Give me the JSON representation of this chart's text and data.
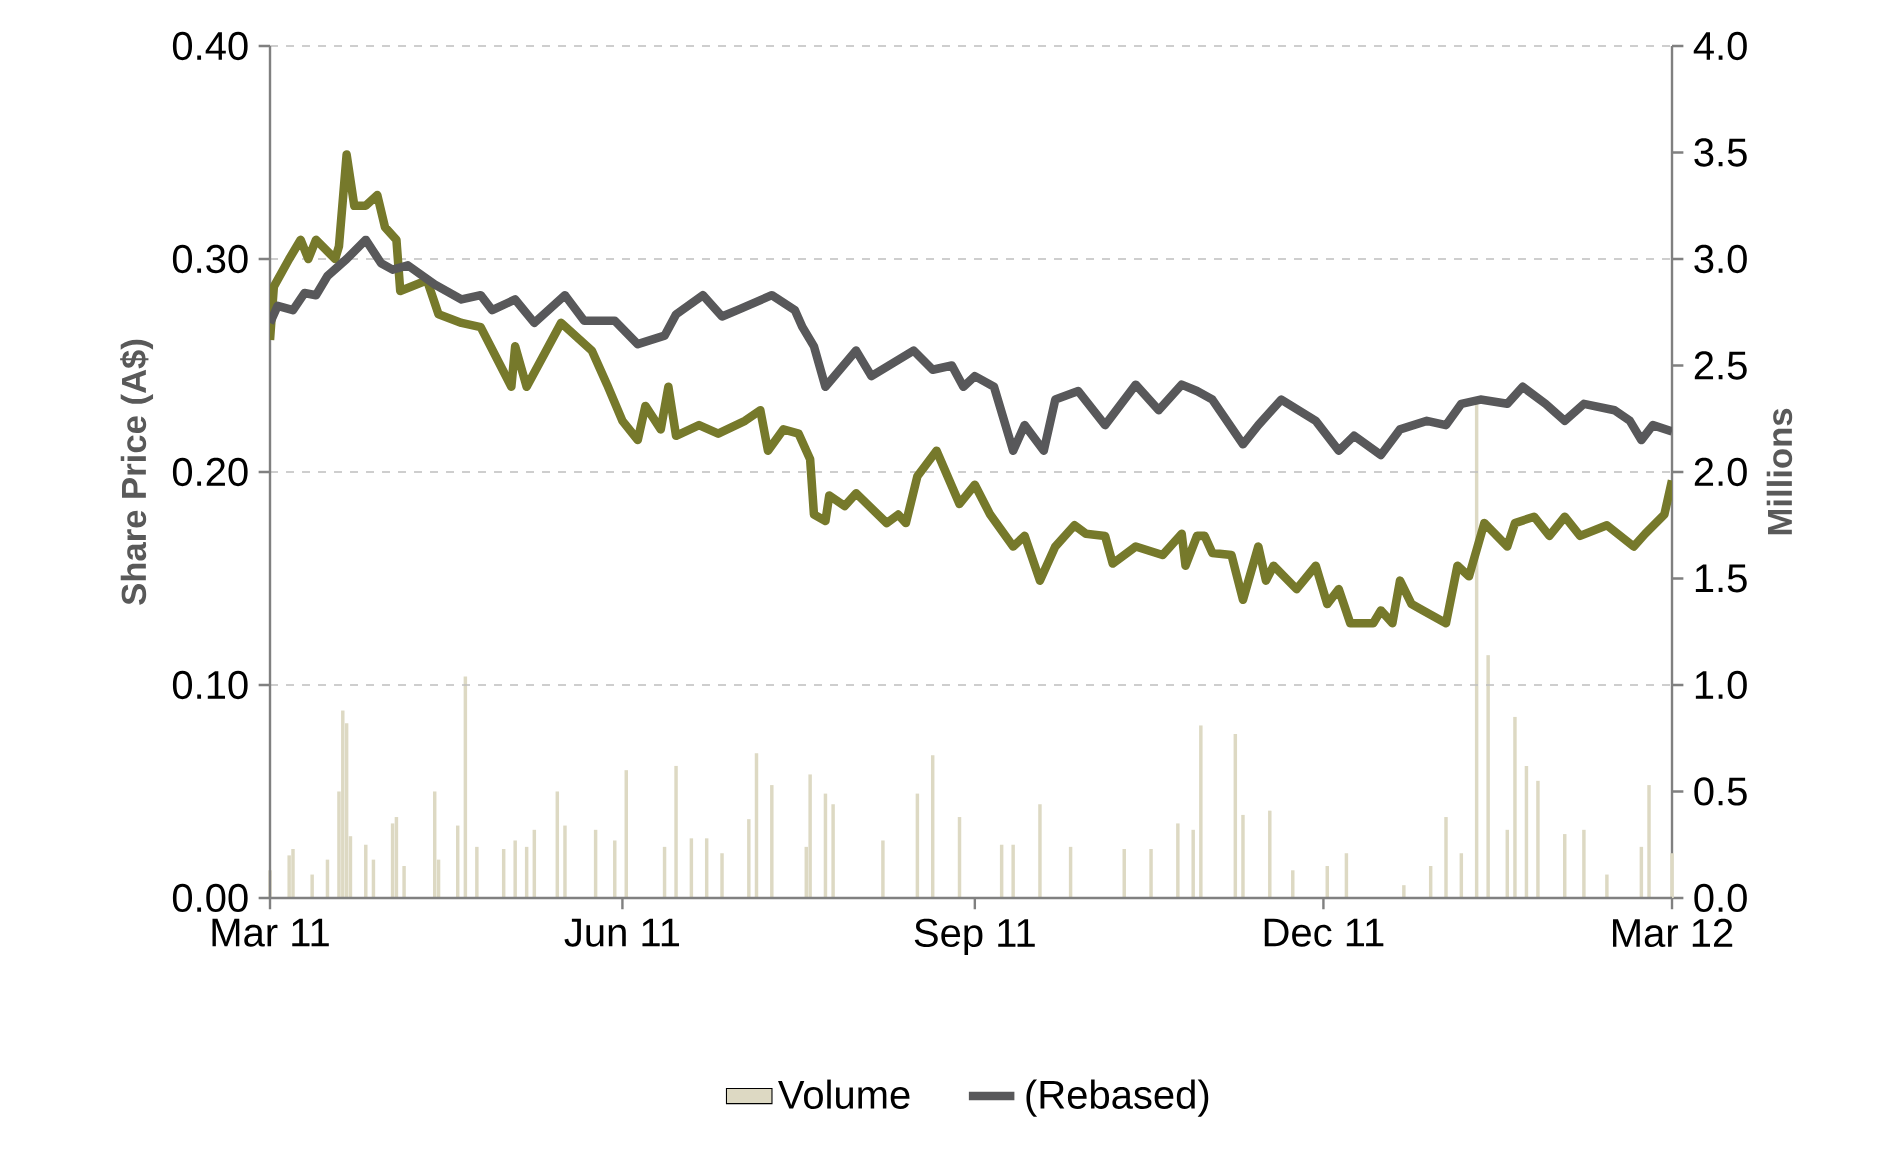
{
  "chart_data": {
    "type": "line",
    "ylabel": "Share Price (A$)",
    "y2label": "Millions",
    "xlim": [
      "2011-03-01",
      "2012-03-01"
    ],
    "xticks": [
      {
        "value": "2011-03-01",
        "label": "Mar 11"
      },
      {
        "value": "2011-06-01",
        "label": "Jun 11"
      },
      {
        "value": "2011-09-01",
        "label": "Sep 11"
      },
      {
        "value": "2011-12-01",
        "label": "Dec 11"
      },
      {
        "value": "2012-03-01",
        "label": "Mar 12"
      }
    ],
    "ylim": [
      0,
      0.4
    ],
    "yticks": [
      {
        "value": 0,
        "label": "0.00"
      },
      {
        "value": 0.1,
        "label": "0.10"
      },
      {
        "value": 0.2,
        "label": "0.20"
      },
      {
        "value": 0.3,
        "label": "0.30"
      },
      {
        "value": 0.4,
        "label": "0.40"
      }
    ],
    "y2lim": [
      0,
      4
    ],
    "y2ticks": [
      {
        "value": 0,
        "label": "0.0"
      },
      {
        "value": 0.5,
        "label": "0.5"
      },
      {
        "value": 1,
        "label": "1.0"
      },
      {
        "value": 1.5,
        "label": "1.5"
      },
      {
        "value": 2,
        "label": "2.0"
      },
      {
        "value": 2.5,
        "label": "2.5"
      },
      {
        "value": 3,
        "label": "3.0"
      },
      {
        "value": 3.5,
        "label": "3.5"
      },
      {
        "value": 4,
        "label": "4.0"
      }
    ],
    "grid": "y",
    "legend": "bottom",
    "marker": "none",
    "line_style": "solid",
    "series": [
      {
        "name": "Volume",
        "type": "bar",
        "axis": "y2",
        "color": "#ddd9c3",
        "x": [
          "2011-03-01",
          "2011-03-06",
          "2011-03-07",
          "2011-03-12",
          "2011-03-16",
          "2011-03-19",
          "2011-03-20",
          "2011-03-21",
          "2011-03-22",
          "2011-03-26",
          "2011-03-28",
          "2011-04-02",
          "2011-04-03",
          "2011-04-05",
          "2011-04-13",
          "2011-04-14",
          "2011-04-19",
          "2011-04-21",
          "2011-04-24",
          "2011-05-01",
          "2011-05-04",
          "2011-05-07",
          "2011-05-09",
          "2011-05-15",
          "2011-05-17",
          "2011-05-25",
          "2011-05-30",
          "2011-06-02",
          "2011-06-12",
          "2011-06-15",
          "2011-06-19",
          "2011-06-23",
          "2011-06-27",
          "2011-07-04",
          "2011-07-06",
          "2011-07-10",
          "2011-07-19",
          "2011-07-20",
          "2011-07-24",
          "2011-07-26",
          "2011-08-08",
          "2011-08-17",
          "2011-08-21",
          "2011-08-28",
          "2011-09-08",
          "2011-09-11",
          "2011-09-18",
          "2011-09-26",
          "2011-10-10",
          "2011-10-17",
          "2011-10-24",
          "2011-10-28",
          "2011-10-30",
          "2011-11-08",
          "2011-11-10",
          "2011-11-17",
          "2011-11-23",
          "2011-12-02",
          "2011-12-07",
          "2011-12-22",
          "2011-12-29",
          "2012-01-02",
          "2012-01-06",
          "2012-01-10",
          "2012-01-13",
          "2012-01-18",
          "2012-01-20",
          "2012-01-23",
          "2012-01-26",
          "2012-02-02",
          "2012-02-07",
          "2012-02-13",
          "2012-02-22",
          "2012-02-24",
          "2012-03-01"
        ],
        "values": [
          0.13,
          0.2,
          0.23,
          0.11,
          0.18,
          0.5,
          0.88,
          0.82,
          0.29,
          0.25,
          0.18,
          0.35,
          0.38,
          0.15,
          0.5,
          0.18,
          0.34,
          1.04,
          0.24,
          0.23,
          0.27,
          0.24,
          0.32,
          0.5,
          0.34,
          0.32,
          0.27,
          0.6,
          0.24,
          0.62,
          0.28,
          0.28,
          0.21,
          0.37,
          0.68,
          0.53,
          0.24,
          0.58,
          0.49,
          0.44,
          0.27,
          0.49,
          0.67,
          0.38,
          0.25,
          0.25,
          0.44,
          0.24,
          0.23,
          0.23,
          0.35,
          0.32,
          0.81,
          0.77,
          0.39,
          0.41,
          0.13,
          0.15,
          0.21,
          0.06,
          0.15,
          0.38,
          0.21,
          2.32,
          1.14,
          0.32,
          0.85,
          0.62,
          0.55,
          0.3,
          0.32,
          0.11,
          0.24,
          0.53,
          0.21
        ]
      },
      {
        "color": "#76792b",
        "x": [
          "2011-03-01",
          "2011-03-02",
          "2011-03-06",
          "2011-03-09",
          "2011-03-11",
          "2011-03-13",
          "2011-03-18",
          "2011-03-19",
          "2011-03-21",
          "2011-03-23",
          "2011-03-26",
          "2011-03-29",
          "2011-03-31",
          "2011-04-03",
          "2011-04-04",
          "2011-04-11",
          "2011-04-14",
          "2011-04-20",
          "2011-04-25",
          "2011-05-03",
          "2011-05-04",
          "2011-05-07",
          "2011-05-16",
          "2011-05-24",
          "2011-05-28",
          "2011-06-01",
          "2011-06-05",
          "2011-06-07",
          "2011-06-11",
          "2011-06-13",
          "2011-06-15",
          "2011-06-21",
          "2011-06-26",
          "2011-07-03",
          "2011-07-07",
          "2011-07-09",
          "2011-07-13",
          "2011-07-17",
          "2011-07-20",
          "2011-07-21",
          "2011-07-24",
          "2011-07-25",
          "2011-07-29",
          "2011-08-01",
          "2011-08-09",
          "2011-08-12",
          "2011-08-14",
          "2011-08-17",
          "2011-08-22",
          "2011-08-28",
          "2011-09-01",
          "2011-09-05",
          "2011-09-11",
          "2011-09-14",
          "2011-09-18",
          "2011-09-22",
          "2011-09-27",
          "2011-09-30",
          "2011-10-05",
          "2011-10-07",
          "2011-10-13",
          "2011-10-20",
          "2011-10-25",
          "2011-10-26",
          "2011-10-29",
          "2011-10-31",
          "2011-11-02",
          "2011-11-07",
          "2011-11-10",
          "2011-11-14",
          "2011-11-16",
          "2011-11-18",
          "2011-11-24",
          "2011-11-29",
          "2011-12-02",
          "2011-12-05",
          "2011-12-08",
          "2011-12-14",
          "2011-12-16",
          "2011-12-19",
          "2011-12-21",
          "2011-12-24",
          "2011-12-27",
          "2012-01-02",
          "2012-01-05",
          "2012-01-08",
          "2012-01-12",
          "2012-01-18",
          "2012-01-20",
          "2012-01-25",
          "2012-01-29",
          "2012-02-02",
          "2012-02-06",
          "2012-02-13",
          "2012-02-20",
          "2012-02-23",
          "2012-02-28",
          "2012-03-01"
        ],
        "values": [
          0.262,
          0.287,
          0.3,
          0.309,
          0.3,
          0.309,
          0.3,
          0.306,
          0.349,
          0.325,
          0.325,
          0.33,
          0.315,
          0.309,
          0.285,
          0.29,
          0.274,
          0.27,
          0.268,
          0.24,
          0.259,
          0.24,
          0.27,
          0.257,
          0.241,
          0.224,
          0.215,
          0.231,
          0.22,
          0.24,
          0.217,
          0.222,
          0.218,
          0.224,
          0.229,
          0.21,
          0.22,
          0.218,
          0.206,
          0.18,
          0.177,
          0.189,
          0.184,
          0.19,
          0.176,
          0.18,
          0.176,
          0.198,
          0.21,
          0.185,
          0.194,
          0.18,
          0.165,
          0.17,
          0.149,
          0.165,
          0.175,
          0.171,
          0.17,
          0.157,
          0.165,
          0.161,
          0.171,
          0.156,
          0.17,
          0.17,
          0.162,
          0.161,
          0.14,
          0.165,
          0.149,
          0.156,
          0.145,
          0.156,
          0.138,
          0.145,
          0.129,
          0.129,
          0.135,
          0.129,
          0.149,
          0.138,
          0.135,
          0.129,
          0.156,
          0.151,
          0.176,
          0.165,
          0.176,
          0.179,
          0.17,
          0.179,
          0.17,
          0.175,
          0.165,
          0.171,
          0.18,
          0.196
        ]
      },
      {
        "name": "(Rebased)",
        "color": "#58585a",
        "x": [
          "2011-03-01",
          "2011-03-03",
          "2011-03-07",
          "2011-03-10",
          "2011-03-13",
          "2011-03-16",
          "2011-03-21",
          "2011-03-26",
          "2011-03-30",
          "2011-04-02",
          "2011-04-06",
          "2011-04-13",
          "2011-04-20",
          "2011-04-25",
          "2011-04-28",
          "2011-05-04",
          "2011-05-09",
          "2011-05-17",
          "2011-05-22",
          "2011-05-30",
          "2011-06-05",
          "2011-06-12",
          "2011-06-15",
          "2011-06-22",
          "2011-06-27",
          "2011-07-01",
          "2011-07-10",
          "2011-07-16",
          "2011-07-18",
          "2011-07-21",
          "2011-07-24",
          "2011-08-01",
          "2011-08-05",
          "2011-08-16",
          "2011-08-21",
          "2011-08-26",
          "2011-08-29",
          "2011-09-01",
          "2011-09-06",
          "2011-09-11",
          "2011-09-14",
          "2011-09-19",
          "2011-09-22",
          "2011-09-28",
          "2011-10-05",
          "2011-10-13",
          "2011-10-19",
          "2011-10-25",
          "2011-10-29",
          "2011-11-02",
          "2011-11-10",
          "2011-11-14",
          "2011-11-20",
          "2011-11-29",
          "2011-12-05",
          "2011-12-09",
          "2011-12-16",
          "2011-12-21",
          "2011-12-28",
          "2012-01-02",
          "2012-01-06",
          "2012-01-11",
          "2012-01-18",
          "2012-01-22",
          "2012-01-28",
          "2012-02-02",
          "2012-02-07",
          "2012-02-15",
          "2012-02-19",
          "2012-02-22",
          "2012-02-25",
          "2012-03-01"
        ],
        "values": [
          0.27,
          0.278,
          0.276,
          0.284,
          0.283,
          0.292,
          0.3,
          0.309,
          0.298,
          0.295,
          0.297,
          0.288,
          0.281,
          0.283,
          0.276,
          0.281,
          0.27,
          0.283,
          0.271,
          0.271,
          0.26,
          0.264,
          0.274,
          0.283,
          0.273,
          0.276,
          0.283,
          0.276,
          0.268,
          0.259,
          0.24,
          0.257,
          0.245,
          0.257,
          0.248,
          0.25,
          0.24,
          0.245,
          0.24,
          0.21,
          0.222,
          0.21,
          0.234,
          0.238,
          0.222,
          0.241,
          0.229,
          0.241,
          0.238,
          0.234,
          0.213,
          0.222,
          0.234,
          0.224,
          0.21,
          0.217,
          0.208,
          0.22,
          0.224,
          0.222,
          0.232,
          0.234,
          0.232,
          0.24,
          0.232,
          0.224,
          0.232,
          0.229,
          0.224,
          0.215,
          0.222,
          0.219
        ]
      }
    ]
  }
}
